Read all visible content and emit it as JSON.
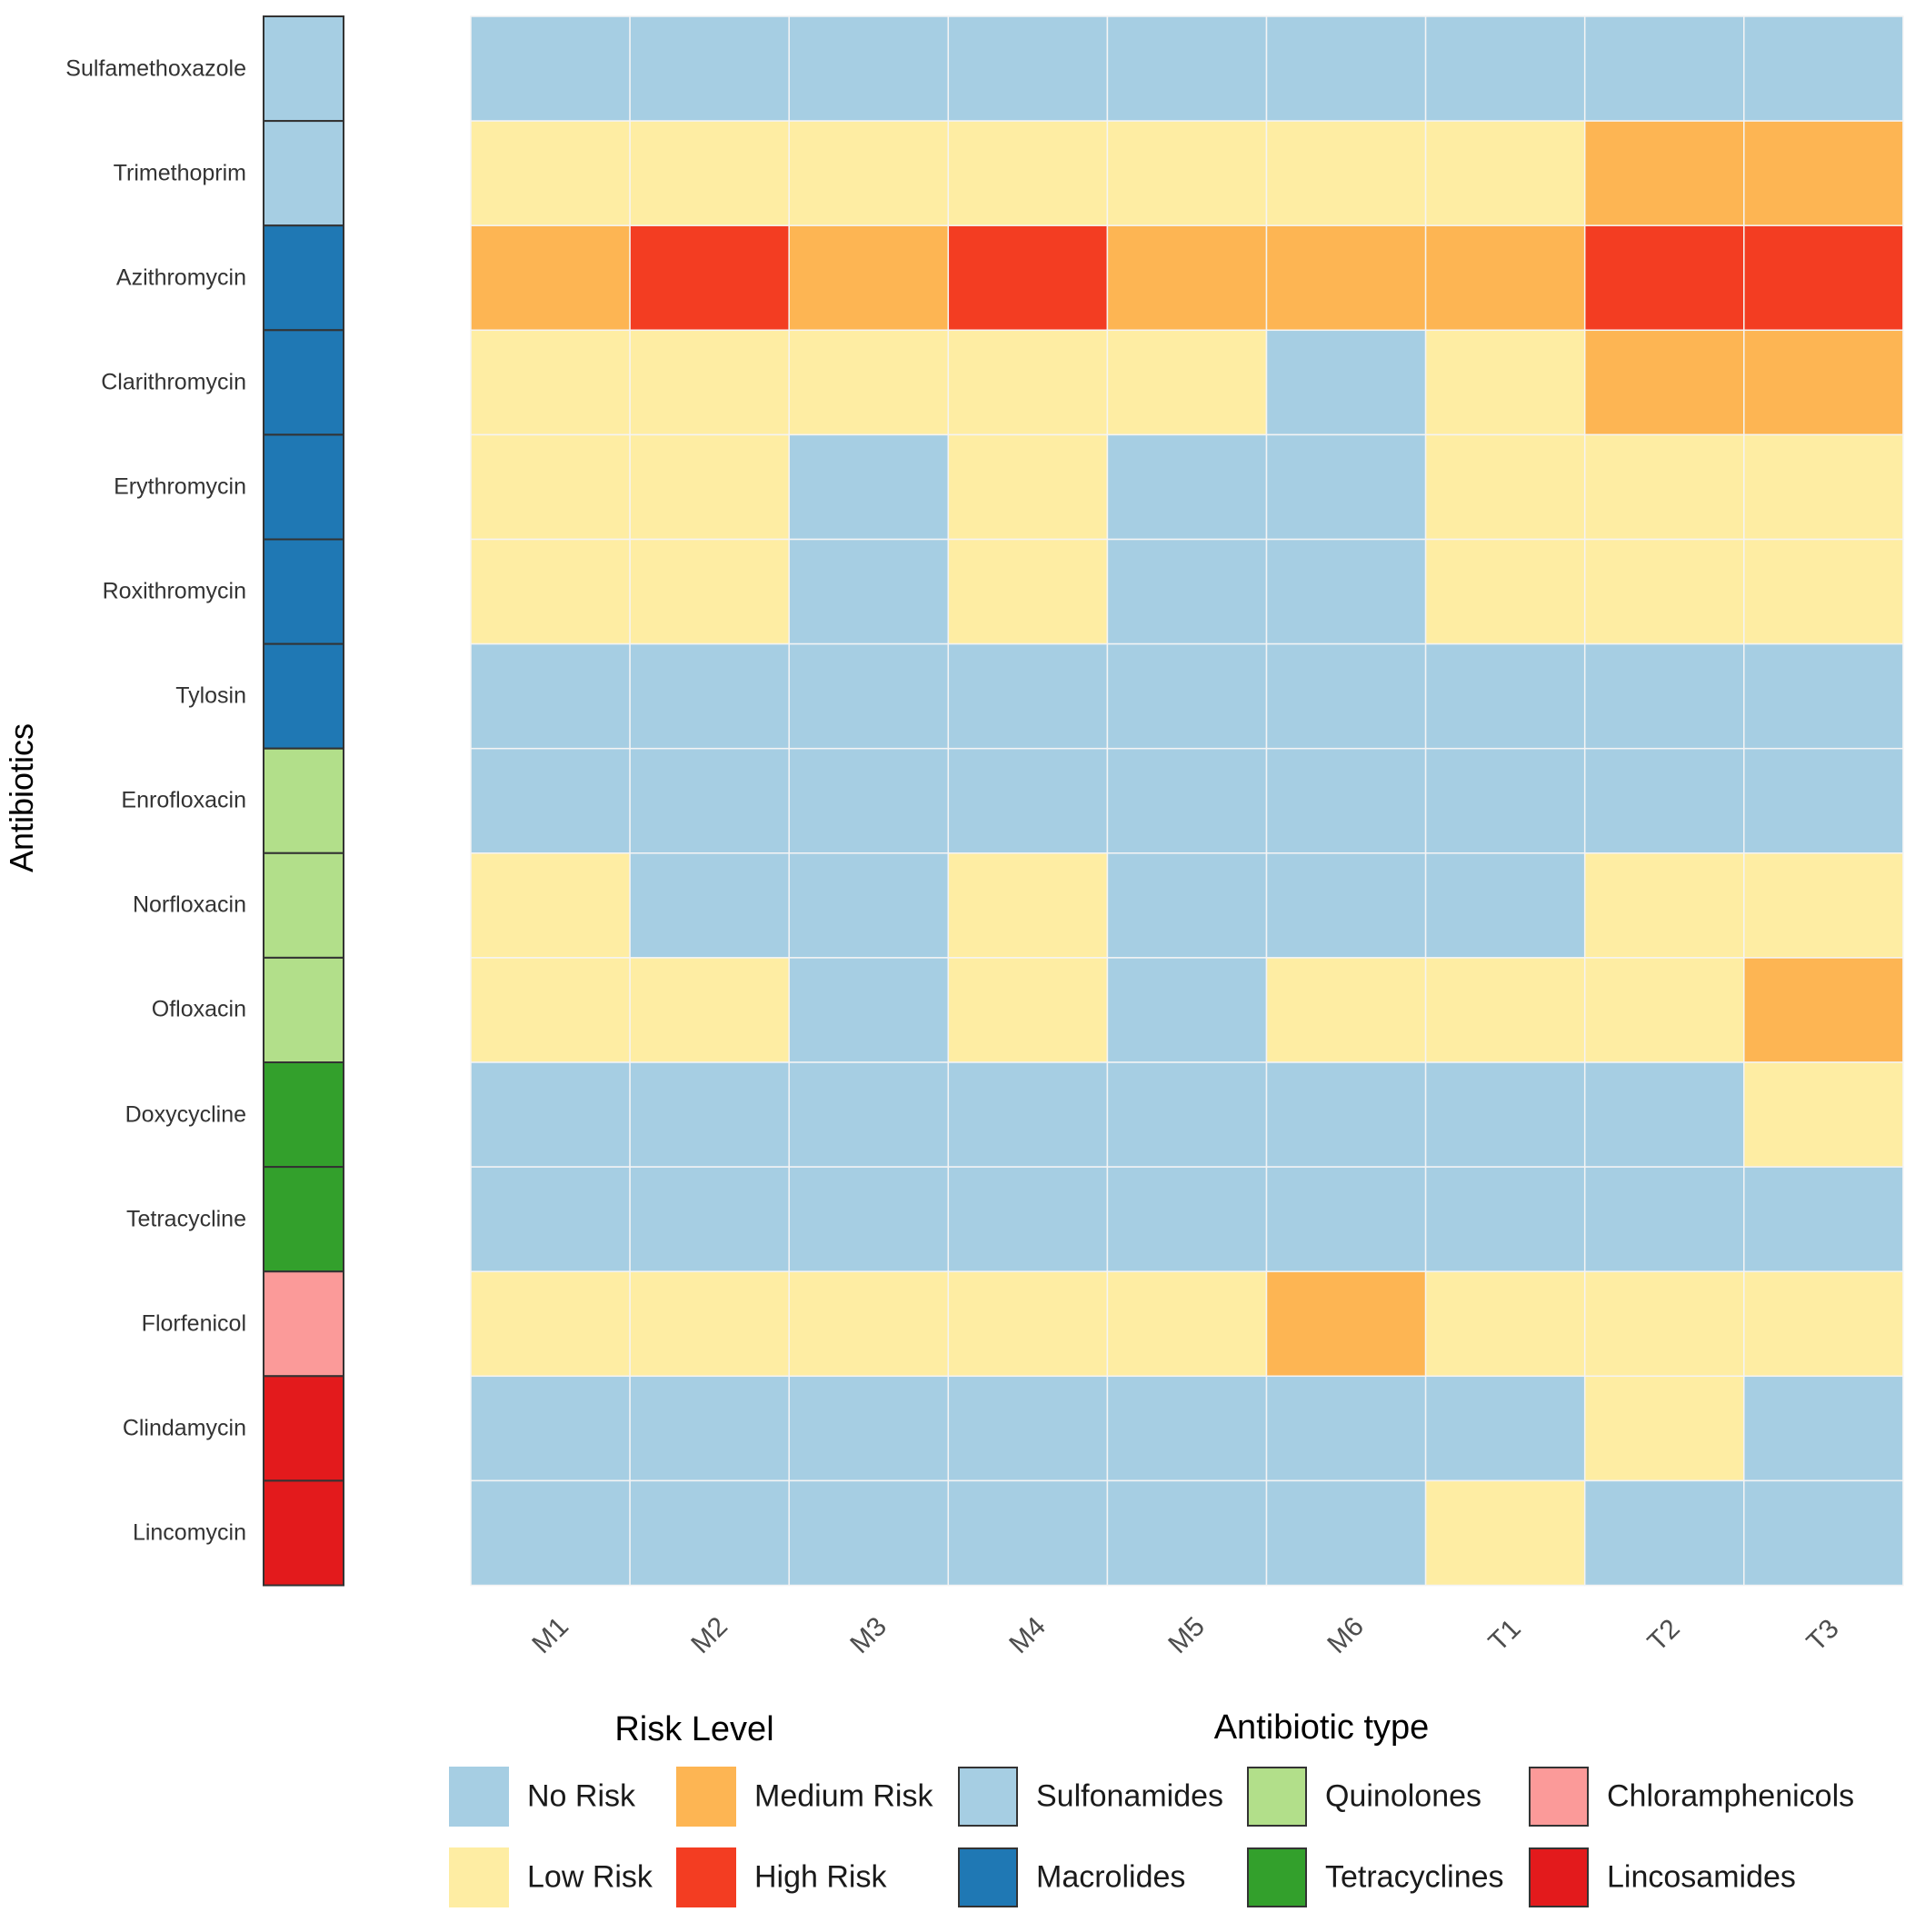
{
  "chart_data": {
    "type": "heatmap",
    "title": "",
    "xlabel": "",
    "ylabel": "Antibiotics",
    "x": [
      "M1",
      "M2",
      "M3",
      "M4",
      "M5",
      "M6",
      "T1",
      "T2",
      "T3"
    ],
    "y": [
      "Sulfamethoxazole",
      "Trimethoprim",
      "Azithromycin",
      "Clarithromycin",
      "Erythromycin",
      "Roxithromycin",
      "Tylosin",
      "Enrofloxacin",
      "Norfloxacin",
      "Ofloxacin",
      "Doxycycline",
      "Tetracycline",
      "Florfenicol",
      "Clindamycin",
      "Lincomycin"
    ],
    "values": [
      [
        "No Risk",
        "No Risk",
        "No Risk",
        "No Risk",
        "No Risk",
        "No Risk",
        "No Risk",
        "No Risk",
        "No Risk"
      ],
      [
        "Low Risk",
        "Low Risk",
        "Low Risk",
        "Low Risk",
        "Low Risk",
        "Low Risk",
        "Low Risk",
        "Medium Risk",
        "Medium Risk"
      ],
      [
        "Medium Risk",
        "High Risk",
        "Medium Risk",
        "High Risk",
        "Medium Risk",
        "Medium Risk",
        "Medium Risk",
        "High Risk",
        "High Risk"
      ],
      [
        "Low Risk",
        "Low Risk",
        "Low Risk",
        "Low Risk",
        "Low Risk",
        "No Risk",
        "Low Risk",
        "Medium Risk",
        "Medium Risk"
      ],
      [
        "Low Risk",
        "Low Risk",
        "No Risk",
        "Low Risk",
        "No Risk",
        "No Risk",
        "Low Risk",
        "Low Risk",
        "Low Risk"
      ],
      [
        "Low Risk",
        "Low Risk",
        "No Risk",
        "Low Risk",
        "No Risk",
        "No Risk",
        "Low Risk",
        "Low Risk",
        "Low Risk"
      ],
      [
        "No Risk",
        "No Risk",
        "No Risk",
        "No Risk",
        "No Risk",
        "No Risk",
        "No Risk",
        "No Risk",
        "No Risk"
      ],
      [
        "No Risk",
        "No Risk",
        "No Risk",
        "No Risk",
        "No Risk",
        "No Risk",
        "No Risk",
        "No Risk",
        "No Risk"
      ],
      [
        "Low Risk",
        "No Risk",
        "No Risk",
        "Low Risk",
        "No Risk",
        "No Risk",
        "No Risk",
        "Low Risk",
        "Low Risk"
      ],
      [
        "Low Risk",
        "Low Risk",
        "No Risk",
        "Low Risk",
        "No Risk",
        "Low Risk",
        "Low Risk",
        "Low Risk",
        "Medium Risk"
      ],
      [
        "No Risk",
        "No Risk",
        "No Risk",
        "No Risk",
        "No Risk",
        "No Risk",
        "No Risk",
        "No Risk",
        "Low Risk"
      ],
      [
        "No Risk",
        "No Risk",
        "No Risk",
        "No Risk",
        "No Risk",
        "No Risk",
        "No Risk",
        "No Risk",
        "No Risk"
      ],
      [
        "Low Risk",
        "Low Risk",
        "Low Risk",
        "Low Risk",
        "Low Risk",
        "Medium Risk",
        "Low Risk",
        "Low Risk",
        "Low Risk"
      ],
      [
        "No Risk",
        "No Risk",
        "No Risk",
        "No Risk",
        "No Risk",
        "No Risk",
        "No Risk",
        "Low Risk",
        "No Risk"
      ],
      [
        "No Risk",
        "No Risk",
        "No Risk",
        "No Risk",
        "No Risk",
        "No Risk",
        "Low Risk",
        "No Risk",
        "No Risk"
      ]
    ],
    "row_annotation": {
      "title": "Antibiotic type",
      "values": [
        "Sulfonamides",
        "Sulfonamides",
        "Macrolides",
        "Macrolides",
        "Macrolides",
        "Macrolides",
        "Macrolides",
        "Quinolones",
        "Quinolones",
        "Quinolones",
        "Tetracyclines",
        "Tetracyclines",
        "Chloramphenicols",
        "Lincosamides",
        "Lincosamides"
      ]
    },
    "legends": {
      "risk": {
        "title": "Risk Level",
        "items": [
          {
            "label": "No Risk",
            "color": "#a6cee3"
          },
          {
            "label": "Low Risk",
            "color": "#feeda3"
          },
          {
            "label": "Medium Risk",
            "color": "#fdb553"
          },
          {
            "label": "High Risk",
            "color": "#f33d22"
          }
        ]
      },
      "type": {
        "title": "Antibiotic type",
        "items": [
          {
            "label": "Sulfonamides",
            "color": "#a6cee3"
          },
          {
            "label": "Macrolides",
            "color": "#1f78b4"
          },
          {
            "label": "Quinolones",
            "color": "#b2df8a"
          },
          {
            "label": "Tetracyclines",
            "color": "#33a02c"
          },
          {
            "label": "Chloramphenicols",
            "color": "#fb9a99"
          },
          {
            "label": "Lincosamides",
            "color": "#e31a1c"
          }
        ]
      }
    }
  }
}
